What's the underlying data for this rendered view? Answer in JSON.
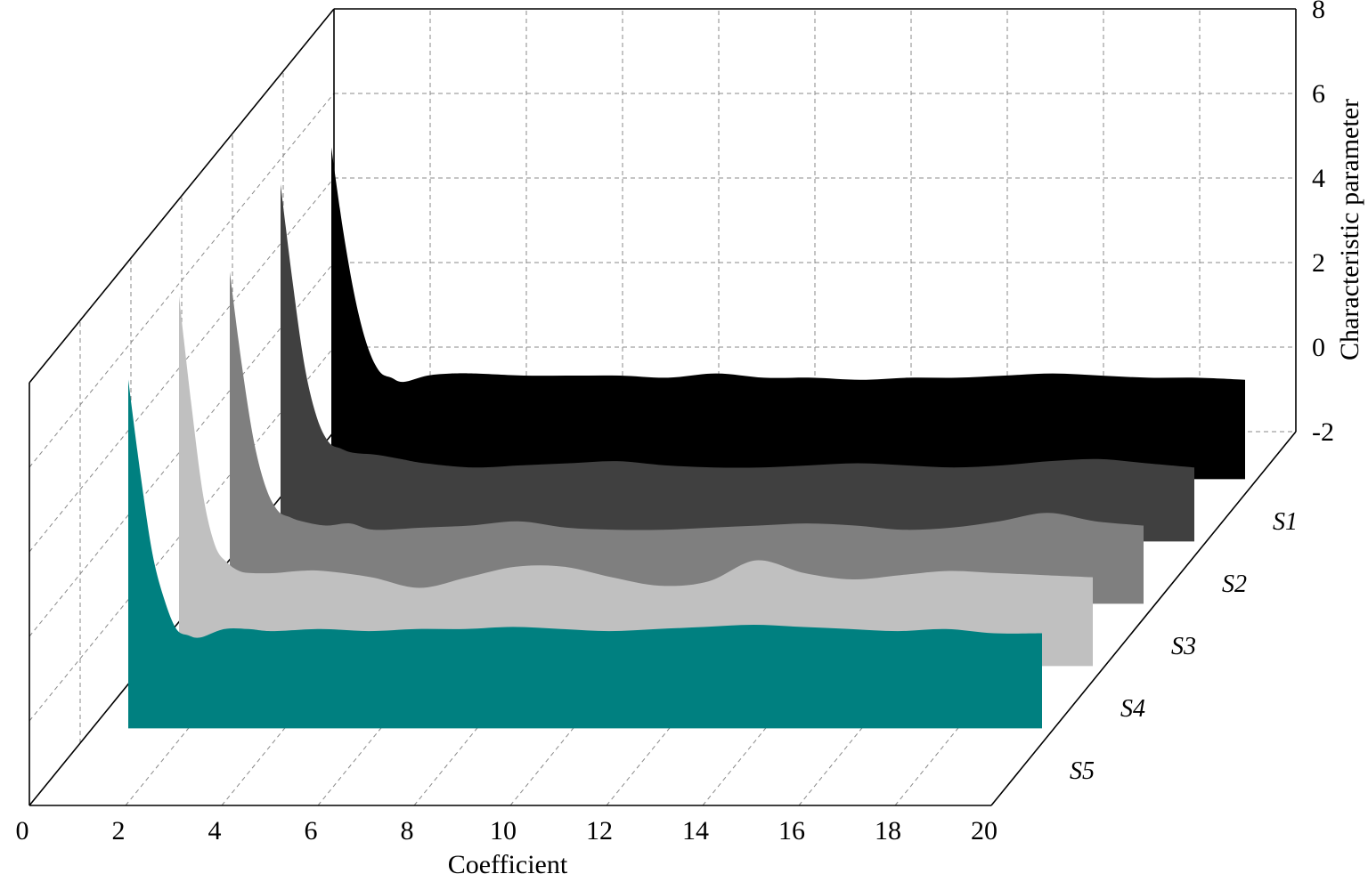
{
  "chart_data": {
    "type": "area",
    "style": "3d-waterfall",
    "xlabel": "Coefficient",
    "zlabel": "Characteristic parameter",
    "xlim": [
      0,
      20
    ],
    "zlim": [
      -2,
      8
    ],
    "x_ticks": [
      "0",
      "2",
      "4",
      "6",
      "8",
      "10",
      "12",
      "14",
      "16",
      "18",
      "20"
    ],
    "z_ticks": [
      "8",
      "6",
      "4",
      "2",
      "0",
      "-2"
    ],
    "grid": true,
    "x": [
      1,
      1.25,
      1.5,
      1.75,
      2,
      2.25,
      2.5,
      3,
      3.5,
      4,
      5,
      6,
      7,
      8,
      9,
      10,
      11,
      12,
      13,
      14,
      15,
      16,
      17,
      18,
      19,
      20
    ],
    "series": [
      {
        "name": "S1",
        "color": "#000000",
        "values": [
          6.2,
          4.2,
          2.6,
          1.5,
          0.9,
          0.75,
          0.65,
          0.8,
          0.85,
          0.85,
          0.8,
          0.8,
          0.8,
          0.75,
          0.85,
          0.75,
          0.75,
          0.7,
          0.75,
          0.75,
          0.8,
          0.85,
          0.8,
          0.75,
          0.75,
          0.7
        ]
      },
      {
        "name": "S2",
        "color": "#404040",
        "values": [
          6.8,
          4.5,
          2.5,
          1.3,
          0.7,
          0.55,
          0.45,
          0.4,
          0.3,
          0.2,
          0.1,
          0.15,
          0.2,
          0.25,
          0.15,
          0.1,
          0.1,
          0.15,
          0.2,
          0.15,
          0.1,
          0.15,
          0.25,
          0.3,
          0.2,
          0.1
        ]
      },
      {
        "name": "S3",
        "color": "#7f7f7f",
        "values": [
          6.2,
          4.0,
          2.2,
          1.1,
          0.55,
          0.4,
          0.3,
          0.2,
          0.25,
          0.1,
          0.15,
          0.2,
          0.3,
          0.15,
          0.1,
          0.1,
          0.15,
          0.2,
          0.25,
          0.2,
          0.1,
          0.15,
          0.3,
          0.5,
          0.3,
          0.2
        ]
      },
      {
        "name": "S4",
        "color": "#c0c0c0",
        "values": [
          7.1,
          4.6,
          2.4,
          1.2,
          0.8,
          0.6,
          0.55,
          0.55,
          0.6,
          0.6,
          0.45,
          0.2,
          0.45,
          0.7,
          0.7,
          0.45,
          0.25,
          0.35,
          0.85,
          0.55,
          0.4,
          0.5,
          0.6,
          0.55,
          0.5,
          0.45
        ]
      },
      {
        "name": "S5",
        "color": "#008080",
        "values": [
          6.6,
          4.4,
          2.5,
          1.4,
          0.7,
          0.55,
          0.5,
          0.7,
          0.7,
          0.65,
          0.7,
          0.65,
          0.7,
          0.7,
          0.75,
          0.7,
          0.65,
          0.7,
          0.75,
          0.8,
          0.75,
          0.7,
          0.65,
          0.7,
          0.6,
          0.6
        ]
      }
    ]
  }
}
